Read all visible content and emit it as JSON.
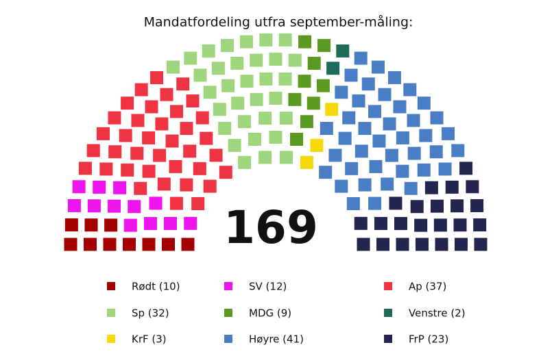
{
  "chart_data": {
    "type": "parliament",
    "title": "Mandatfordeling utfra september-måling:",
    "total": 169,
    "series": [
      {
        "name": "Rødt (10)",
        "color": "#a50000",
        "values": [
          10
        ]
      },
      {
        "name": "SV (12)",
        "color": "#ee14ee",
        "values": [
          12
        ]
      },
      {
        "name": "Ap (37)",
        "color": "#ee3342",
        "values": [
          37
        ]
      },
      {
        "name": "Sp (32)",
        "color": "#9dd67c",
        "values": [
          32
        ]
      },
      {
        "name": "MDG (9)",
        "color": "#5a9a20",
        "values": [
          9
        ]
      },
      {
        "name": "Venstre (2)",
        "color": "#1e6b5a",
        "values": [
          2
        ]
      },
      {
        "name": "KrF (3)",
        "color": "#f7d808",
        "values": [
          3
        ]
      },
      {
        "name": "Høyre (41)",
        "color": "#4a7ec4",
        "values": [
          41
        ]
      },
      {
        "name": "FrP (23)",
        "color": "#22254d",
        "values": [
          23
        ]
      }
    ]
  }
}
